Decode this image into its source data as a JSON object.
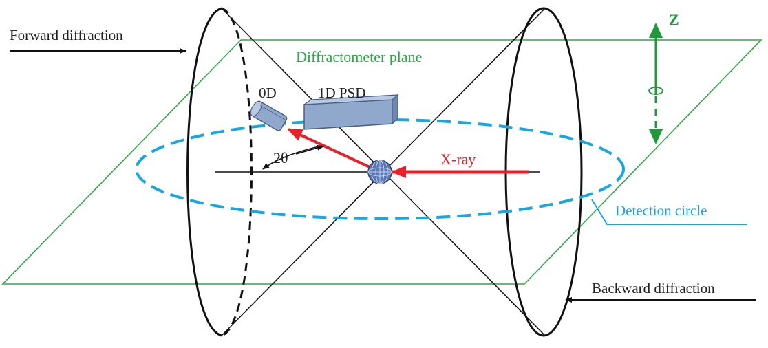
{
  "labels": {
    "forward_diffraction": "Forward diffraction",
    "diffractometer_plane": "Diffractometer plane",
    "z_axis": "Z",
    "zero_d": "0D",
    "one_d_psd": "1D PSD",
    "two_theta": "2θ",
    "x_ray": "X-ray",
    "detection_circle": "Detection circle",
    "backward_diffraction": "Backward diffraction"
  },
  "colors": {
    "plane": "#2ea84a",
    "circle": "#1aa6e0",
    "beam": "#e8202a",
    "cone": "#111111",
    "detector_fill": "#8fa8cc",
    "detector_stroke": "#4a5f86",
    "sample": "#3a5a9a",
    "text": "#222222",
    "z_axis": "#1e9a3a"
  }
}
